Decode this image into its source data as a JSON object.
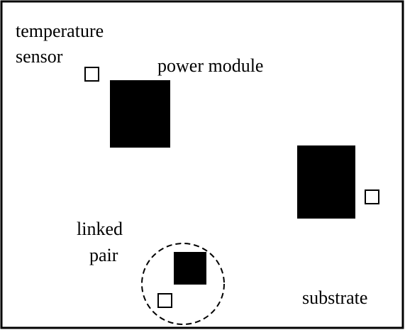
{
  "labels": {
    "temperature_sensor": [
      "temperature",
      "sensor"
    ],
    "power_module": "power module",
    "linked_pair": [
      "linked",
      "pair"
    ],
    "substrate": "substrate"
  }
}
